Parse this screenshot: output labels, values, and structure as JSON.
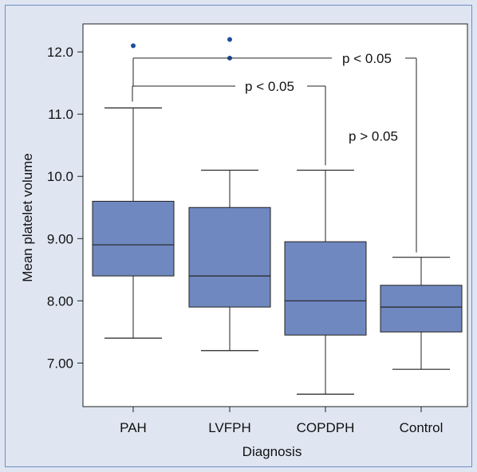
{
  "chart_data": {
    "type": "boxplot",
    "xlabel": "Diagnosis",
    "ylabel": "Mean platelet volume",
    "ylim": [
      6.3,
      12.45
    ],
    "yticks": [
      {
        "value": 7.0,
        "label": "7.00"
      },
      {
        "value": 8.0,
        "label": "8.00"
      },
      {
        "value": 9.0,
        "label": "9.00"
      },
      {
        "value": 10.0,
        "label": "10.0"
      },
      {
        "value": 11.0,
        "label": "11.0"
      },
      {
        "value": 12.0,
        "label": "12.0"
      }
    ],
    "categories": [
      "PAH",
      "LVFPH",
      "COPDPH",
      "Control"
    ],
    "boxes": [
      {
        "category": "PAH",
        "whisker_low": 7.4,
        "q1": 8.4,
        "median": 8.9,
        "q3": 9.6,
        "whisker_high": 11.1,
        "outliers": [
          12.1
        ]
      },
      {
        "category": "LVFPH",
        "whisker_low": 7.2,
        "q1": 7.9,
        "median": 8.4,
        "q3": 9.5,
        "whisker_high": 10.1,
        "outliers": [
          11.9,
          12.2
        ]
      },
      {
        "category": "COPDPH",
        "whisker_low": 6.5,
        "q1": 7.45,
        "median": 8.0,
        "q3": 8.95,
        "whisker_high": 10.1,
        "outliers": []
      },
      {
        "category": "Control",
        "whisker_low": 6.9,
        "q1": 7.5,
        "median": 7.9,
        "q3": 8.25,
        "whisker_high": 8.7,
        "outliers": []
      }
    ],
    "annotations": [
      {
        "text": "p < 0.05",
        "from": "PAH",
        "to": "Control",
        "level": 11.9
      },
      {
        "text": "p < 0.05",
        "from": "PAH",
        "to": "COPDPH",
        "level": 11.45
      },
      {
        "text": "p > 0.05",
        "from": "COPDPH",
        "to": "Control",
        "level": 10.65
      }
    ],
    "colors": {
      "box_fill": "#7088c0",
      "line": "#222222",
      "outlier": "#1f4f9e",
      "background": "#dfe6f2",
      "plot_background": "#ffffff",
      "frame": "#6f8fc4"
    }
  }
}
